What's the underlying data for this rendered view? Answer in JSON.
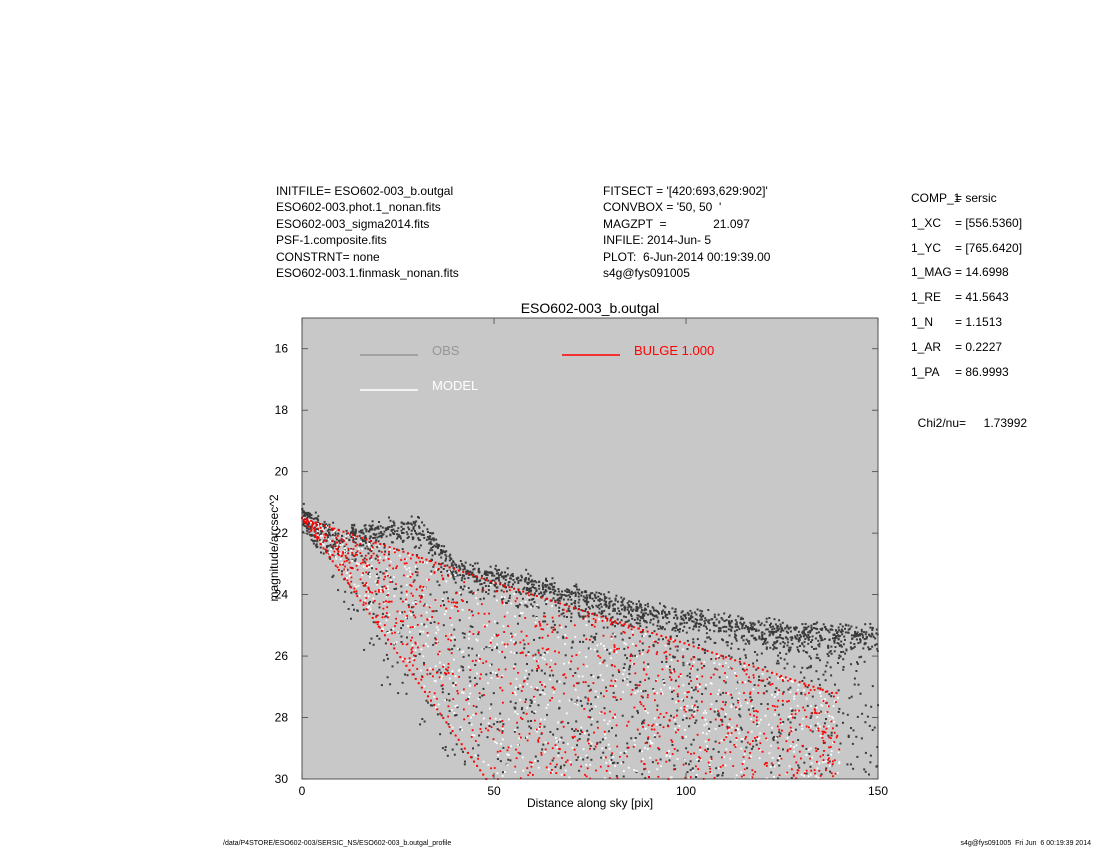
{
  "header": {
    "left_lines": [
      "INITFILE= ESO602-003_b.outgal",
      "ESO602-003.phot.1_nonan.fits",
      "ESO602-003_sigma2014.fits",
      "PSF-1.composite.fits",
      "CONSTRNT= none",
      "ESO602-003.1.finmask_nonan.fits"
    ],
    "mid_lines": [
      "FITSECT = '[420:693,629:902]'",
      "CONVBOX = '50, 50  '",
      "MAGZPT  =              21.097",
      "INFILE: 2014-Jun- 5",
      "PLOT:  6-Jun-2014 00:19:39.00",
      "s4g@fys091005"
    ]
  },
  "components": {
    "params": [
      {
        "key": "COMP_1",
        "value": "= sersic"
      },
      {
        "key": "1_XC",
        "value": "= [556.5360]"
      },
      {
        "key": "1_YC",
        "value": "= [765.6420]"
      },
      {
        "key": "1_MAG",
        "value": "= 14.6998"
      },
      {
        "key": "1_RE",
        "value": "= 41.5643"
      },
      {
        "key": "1_N",
        "value": "= 1.1513"
      },
      {
        "key": "1_AR",
        "value": "= 0.2227"
      },
      {
        "key": "1_PA",
        "value": "= 86.9993"
      }
    ],
    "chi2_label": "Chi2/nu=",
    "chi2_value": "1.73992"
  },
  "footer": {
    "left": "/data/P4STORE/ESO602-003/SERSIC_NS/ESO602-003_b.outgal_profile",
    "right": "s4g@fys091005  Fri Jun  6 00:19:39 2014"
  },
  "chart_data": {
    "type": "scatter",
    "title": "ESO602-003_b.outgal",
    "xlabel": "Distance along sky [pix]",
    "ylabel": "magnitude/arcsec^2",
    "xlim": [
      0,
      150
    ],
    "ylim": [
      30,
      15
    ],
    "y_inverted": true,
    "xticks": [
      0,
      50,
      100,
      150
    ],
    "yticks": [
      16,
      18,
      20,
      22,
      24,
      26,
      28,
      30
    ],
    "background_color": "#c8c8c8",
    "legend": [
      {
        "label": "OBS",
        "color": "#969696"
      },
      {
        "label": "MODEL",
        "color": "#ffffff"
      },
      {
        "label": "BULGE  1.000",
        "color": "#ff0000"
      }
    ],
    "series": [
      {
        "name": "OBS",
        "color": "#3a3a3a",
        "ridge": [
          [
            0,
            21.2
          ],
          [
            10,
            22.0
          ],
          [
            30,
            21.6
          ],
          [
            40,
            23.0
          ],
          [
            60,
            23.5
          ],
          [
            80,
            24.2
          ],
          [
            100,
            24.6
          ],
          [
            120,
            25.0
          ],
          [
            150,
            25.2
          ]
        ],
        "lower_envelope": [
          [
            0,
            21.6
          ],
          [
            10,
            24.0
          ],
          [
            20,
            27.0
          ],
          [
            40,
            29.5
          ],
          [
            60,
            30
          ],
          [
            150,
            30
          ]
        ]
      },
      {
        "name": "BULGE  1.000",
        "color": "#ff0000",
        "upper_envelope": [
          [
            0,
            21.5
          ],
          [
            50,
            23.6
          ],
          [
            100,
            25.6
          ],
          [
            138,
            27.2
          ]
        ],
        "lower_envelope": [
          [
            0,
            21.5
          ],
          [
            48,
            30
          ]
        ]
      }
    ]
  }
}
